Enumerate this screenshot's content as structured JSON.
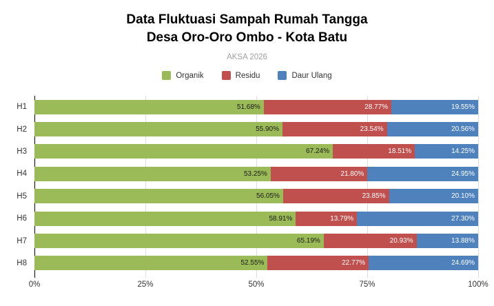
{
  "title": {
    "line1": "Data Fluktuasi Sampah Rumah Tangga",
    "line2": "Desa Oro-Oro Ombo - Kota Batu"
  },
  "subtitle": "AKSA 2026",
  "colors": {
    "organik": "#9BBB59",
    "residu": "#C0504D",
    "daur_ulang": "#4F81BD",
    "gridline": "#DDDDDD",
    "axis_line": "#000000",
    "subtitle_text": "#9E9E9E",
    "background": "#FFFFFF"
  },
  "chart_data": {
    "type": "bar",
    "orientation": "horizontal",
    "stacked": true,
    "title": "Data Fluktuasi Sampah Rumah Tangga Desa Oro-Oro Ombo - Kota Batu",
    "subtitle": "AKSA 2026",
    "unit": "%",
    "xlim": [
      0,
      100
    ],
    "grid": true,
    "legend_position": "top",
    "value_label_format": "two-decimal percent, right-aligned inside segment",
    "categories": [
      "H1",
      "H2",
      "H3",
      "H4",
      "H5",
      "H6",
      "H7",
      "H8"
    ],
    "series": [
      {
        "name": "Organik",
        "color": "#9BBB59",
        "label_color": "#1A1A1A",
        "values": [
          51.68,
          55.9,
          67.24,
          53.25,
          56.05,
          58.91,
          65.19,
          52.55
        ]
      },
      {
        "name": "Residu",
        "color": "#C0504D",
        "label_color": "#FFFFFF",
        "values": [
          28.77,
          23.54,
          18.51,
          21.8,
          23.85,
          13.79,
          20.93,
          22.77
        ]
      },
      {
        "name": "Daur Ulang",
        "color": "#4F81BD",
        "label_color": "#FFFFFF",
        "values": [
          19.55,
          20.56,
          14.25,
          24.95,
          20.1,
          27.3,
          13.88,
          24.69
        ]
      }
    ],
    "x_ticks": [
      {
        "label": "0%",
        "value": 0
      },
      {
        "label": "25%",
        "value": 25
      },
      {
        "label": "50%",
        "value": 50
      },
      {
        "label": "75%",
        "value": 75
      },
      {
        "label": "100%",
        "value": 100
      }
    ]
  }
}
